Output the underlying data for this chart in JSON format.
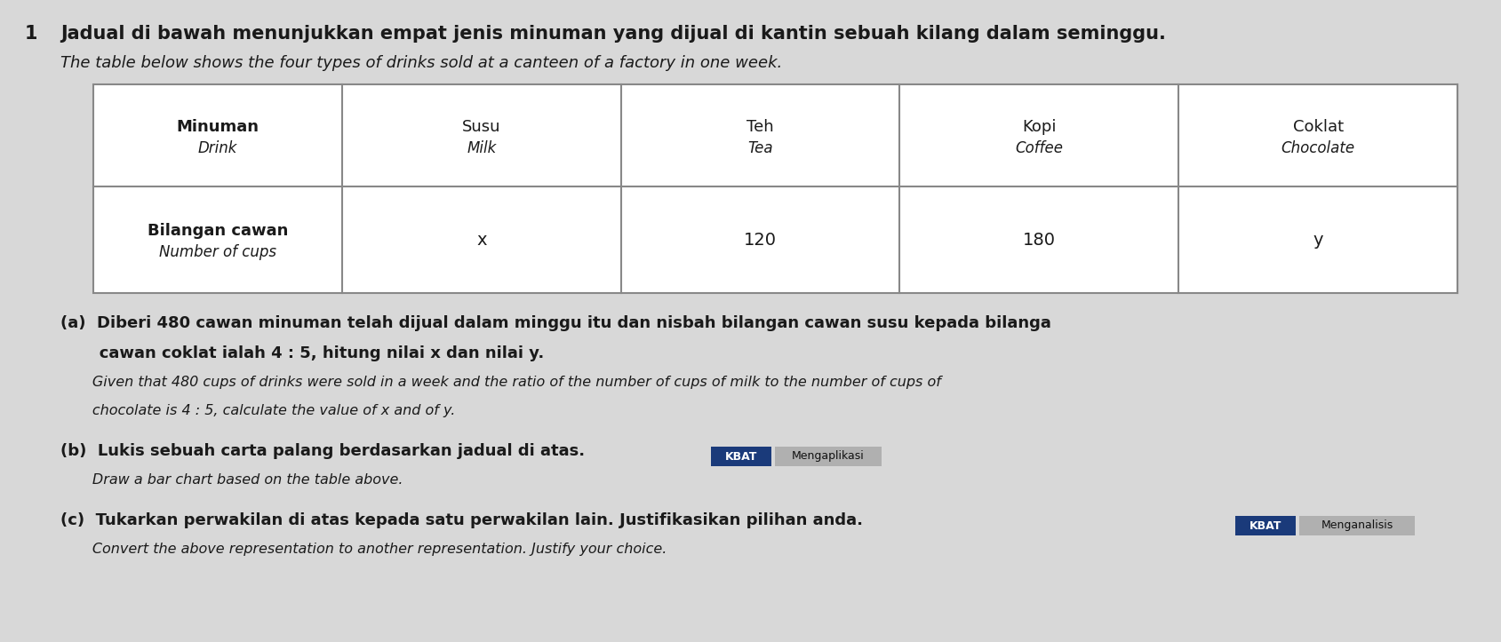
{
  "question_number": "1",
  "title_malay": "Jadual di bawah menunjukkan empat jenis minuman yang dijual di kantin sebuah kilang dalam seminggu.",
  "title_english": "The table below shows the four types of drinks sold at a canteen of a factory in one week.",
  "table": {
    "header_col_line1": "Minuman",
    "header_col_line2": "Drink",
    "columns": [
      {
        "malay": "Susu",
        "english": "Milk",
        "value": "x"
      },
      {
        "malay": "Teh",
        "english": "Tea",
        "value": "120"
      },
      {
        "malay": "Kopi",
        "english": "Coffee",
        "value": "180"
      },
      {
        "malay": "Coklat",
        "english": "Chocolate",
        "value": "y"
      }
    ],
    "row2_line1": "Bilangan cawan",
    "row2_line2": "Number of cups"
  },
  "part_a_line1": "(a)  Diberi 480 cawan minuman telah dijual dalam minggu itu dan nisbah bilangan cawan susu kepada bilanga",
  "part_a_line2": "       cawan coklat ialah 4 : 5, hitung nilai x dan nilai y.",
  "part_a_line3": "       Given that 480 cups of drinks were sold in a week and the ratio of the number of cups of milk to the number of cups of",
  "part_a_line4": "       chocolate is 4 : 5, calculate the value of x and of y.",
  "part_b_line1": "(b)  Lukis sebuah carta palang berdasarkan jadual di atas.",
  "part_b_line2": "       Draw a bar chart based on the table above.",
  "kbat_b": "KBAT",
  "tag_b": "Mengaplikasi",
  "part_c_line1": "(c)  Tukarkan perwakilan di atas kepada satu perwakilan lain. Justifikasikan pilihan anda.",
  "part_c_line2": "       Convert the above representation to another representation. Justify your choice.",
  "kbat_c": "KBAT",
  "tag_c": "Menganalisis",
  "bg_color": "#d8d8d8",
  "table_bg": "#e8e8e8",
  "table_border": "#888888",
  "text_color": "#1a1a1a",
  "kbat_bg": "#1a3a7a",
  "kbat_fg": "#ffffff",
  "tag_bg": "#b0b0b0",
  "tag_fg": "#111111",
  "title_fontsize": 15,
  "title_italic_fontsize": 13,
  "body_fontsize": 13,
  "body_italic_fontsize": 11.5,
  "table_header_fontsize": 13,
  "table_value_fontsize": 14
}
